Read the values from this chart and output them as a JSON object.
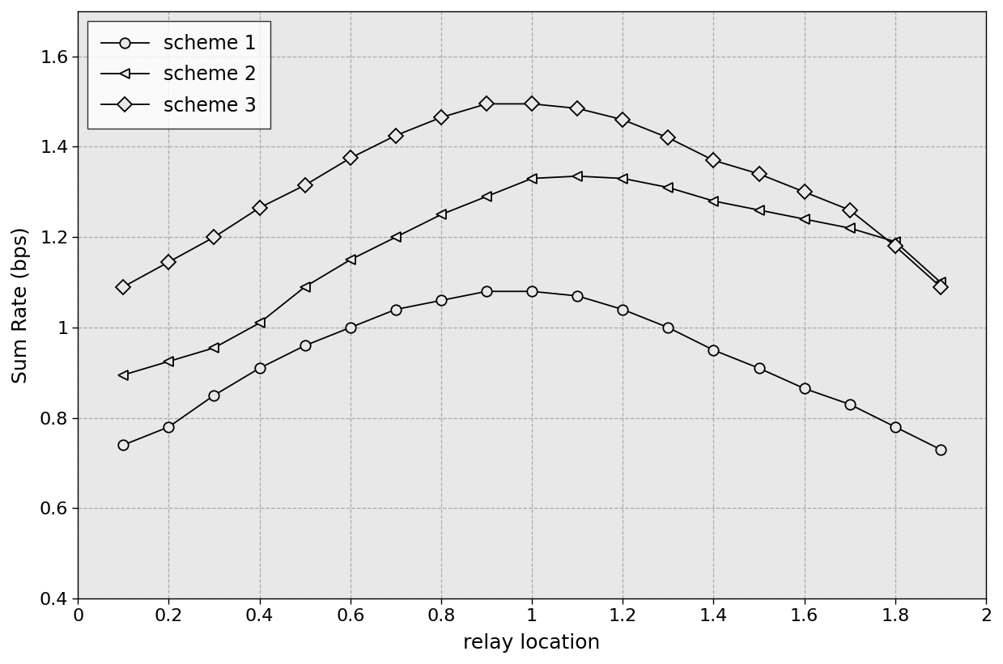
{
  "x": [
    0.1,
    0.2,
    0.3,
    0.4,
    0.5,
    0.6,
    0.7,
    0.8,
    0.9,
    1.0,
    1.1,
    1.2,
    1.3,
    1.4,
    1.5,
    1.6,
    1.7,
    1.8,
    1.9
  ],
  "scheme1": [
    0.74,
    0.78,
    0.85,
    0.91,
    0.96,
    1.0,
    1.04,
    1.06,
    1.08,
    1.08,
    1.07,
    1.04,
    1.0,
    0.95,
    0.91,
    0.865,
    0.83,
    0.78,
    0.73
  ],
  "scheme2": [
    0.895,
    0.925,
    0.955,
    1.01,
    1.09,
    1.15,
    1.2,
    1.25,
    1.29,
    1.33,
    1.335,
    1.33,
    1.31,
    1.28,
    1.26,
    1.24,
    1.22,
    1.19,
    1.1
  ],
  "scheme3": [
    1.09,
    1.145,
    1.2,
    1.265,
    1.315,
    1.375,
    1.425,
    1.465,
    1.495,
    1.495,
    1.485,
    1.46,
    1.42,
    1.37,
    1.34,
    1.3,
    1.26,
    1.18,
    1.09
  ],
  "xlim": [
    0,
    2
  ],
  "ylim": [
    0.4,
    1.7
  ],
  "xlabel": "relay location",
  "ylabel": "Sum Rate (bps)",
  "xticks": [
    0,
    0.2,
    0.4,
    0.6,
    0.8,
    1.0,
    1.2,
    1.4,
    1.6,
    1.8,
    2.0
  ],
  "yticks": [
    0.4,
    0.6,
    0.8,
    1.0,
    1.2,
    1.4,
    1.6
  ],
  "xtick_labels": [
    "0",
    "0.2",
    "0.4",
    "0.6",
    "0.8",
    "1",
    "1.2",
    "1.4",
    "1.6",
    "1.8",
    "2"
  ],
  "ytick_labels": [
    "0.4",
    "0.6",
    "0.8",
    "1",
    "1.2",
    "1.4",
    "1.6"
  ],
  "legend": [
    "scheme 1",
    "scheme 2",
    "scheme 3"
  ],
  "line_color": "#000000",
  "bg_color": "#ffffff",
  "axes_bg_color": "#e8e8e8",
  "grid_color": "#aaaaaa",
  "marker_size": 9,
  "line_width": 1.3,
  "font_size": 18,
  "tick_font_size": 16
}
